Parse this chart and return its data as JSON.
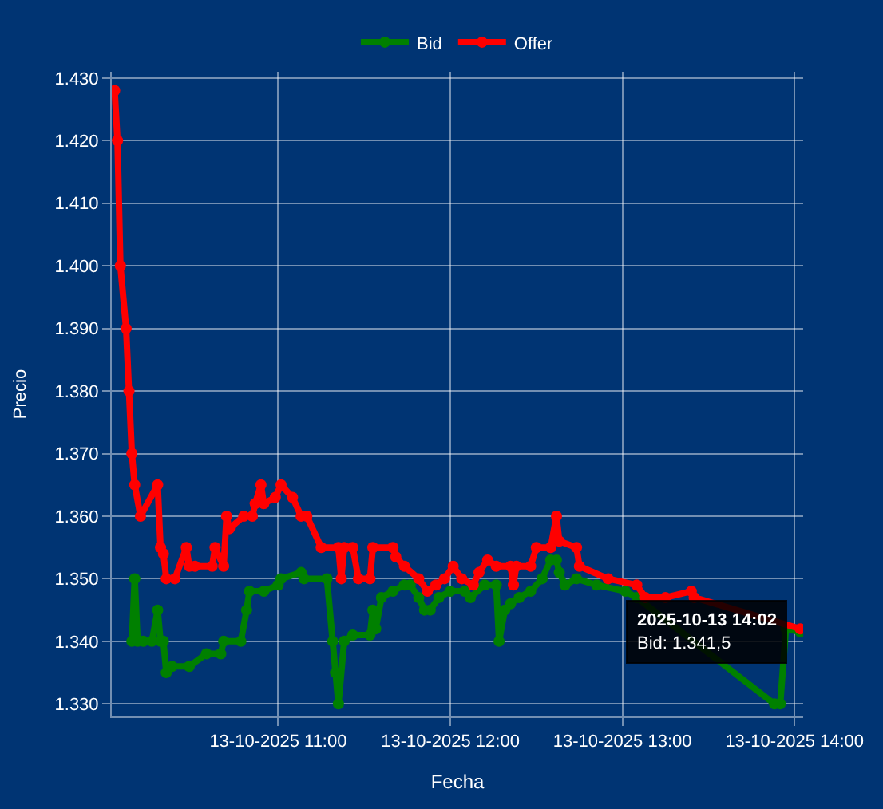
{
  "chart_data": {
    "type": "line",
    "xlabel": "Fecha",
    "ylabel": "Precio",
    "xlim": [
      "2025-10-13T10:02",
      "2025-10-13T14:03"
    ],
    "xticks": [
      {
        "value": "2025-10-13T11:00",
        "label": "13-10-2025 11:00"
      },
      {
        "value": "2025-10-13T12:00",
        "label": "13-10-2025 12:00"
      },
      {
        "value": "2025-10-13T13:00",
        "label": "13-10-2025 13:00"
      },
      {
        "value": "2025-10-13T14:00",
        "label": "13-10-2025 14:00"
      }
    ],
    "ylim": [
      1328,
      1431
    ],
    "yticks": [
      {
        "value": 1330,
        "label": "1.330"
      },
      {
        "value": 1340,
        "label": "1.340"
      },
      {
        "value": 1350,
        "label": "1.350"
      },
      {
        "value": 1360,
        "label": "1.360"
      },
      {
        "value": 1370,
        "label": "1.370"
      },
      {
        "value": 1380,
        "label": "1.380"
      },
      {
        "value": 1390,
        "label": "1.390"
      },
      {
        "value": 1400,
        "label": "1.400"
      },
      {
        "value": 1410,
        "label": "1.410"
      },
      {
        "value": 1420,
        "label": "1.420"
      },
      {
        "value": 1430,
        "label": "1.430"
      }
    ],
    "grid": true,
    "legend": "top",
    "marker": "circle",
    "series": [
      {
        "name": "Bid",
        "color": "#008000",
        "x": [
          "2025-10-13T10:09",
          "2025-10-13T10:10",
          "2025-10-13T10:11",
          "2025-10-13T10:13",
          "2025-10-13T10:16",
          "2025-10-13T10:18",
          "2025-10-13T10:19",
          "2025-10-13T10:20",
          "2025-10-13T10:21",
          "2025-10-13T10:23",
          "2025-10-13T10:29",
          "2025-10-13T10:35",
          "2025-10-13T10:40",
          "2025-10-13T10:41",
          "2025-10-13T10:47",
          "2025-10-13T10:49",
          "2025-10-13T10:50",
          "2025-10-13T10:55",
          "2025-10-13T11:00",
          "2025-10-13T11:01",
          "2025-10-13T11:08",
          "2025-10-13T11:09",
          "2025-10-13T11:17",
          "2025-10-13T11:19",
          "2025-10-13T11:20",
          "2025-10-13T11:21",
          "2025-10-13T11:23",
          "2025-10-13T11:26",
          "2025-10-13T11:32",
          "2025-10-13T11:33",
          "2025-10-13T11:34",
          "2025-10-13T11:36",
          "2025-10-13T11:40",
          "2025-10-13T11:44",
          "2025-10-13T11:46",
          "2025-10-13T11:49",
          "2025-10-13T11:51",
          "2025-10-13T11:53",
          "2025-10-13T11:56",
          "2025-10-13T12:00",
          "2025-10-13T12:05",
          "2025-10-13T12:07",
          "2025-10-13T12:12",
          "2025-10-13T12:16",
          "2025-10-13T12:17",
          "2025-10-13T12:19",
          "2025-10-13T12:21",
          "2025-10-13T12:24",
          "2025-10-13T12:28",
          "2025-10-13T12:32",
          "2025-10-13T12:35",
          "2025-10-13T12:37",
          "2025-10-13T12:38",
          "2025-10-13T12:40",
          "2025-10-13T12:44",
          "2025-10-13T12:51",
          "2025-10-13T13:01",
          "2025-10-13T13:05",
          "2025-10-13T13:53",
          "2025-10-13T13:55",
          "2025-10-13T13:57",
          "2025-10-13T14:02"
        ],
        "values": [
          1340,
          1350,
          1340,
          1340,
          1340,
          1345,
          1340,
          1340,
          1335,
          1336,
          1336,
          1338,
          1338,
          1340,
          1340,
          1345,
          1348,
          1348,
          1349,
          1350,
          1351,
          1350,
          1350,
          1340,
          1335,
          1330,
          1340,
          1341,
          1341,
          1345,
          1342,
          1347,
          1348,
          1349,
          1349,
          1347,
          1345,
          1345,
          1347,
          1348,
          1348,
          1347,
          1349,
          1349,
          1340,
          1345,
          1346,
          1347,
          1348,
          1350,
          1353,
          1353,
          1351,
          1349,
          1350,
          1349,
          1348,
          1347,
          1330,
          1330,
          1342,
          1341.5
        ]
      },
      {
        "name": "Offer",
        "color": "#ff0000",
        "x": [
          "2025-10-13T10:03",
          "2025-10-13T10:04",
          "2025-10-13T10:05",
          "2025-10-13T10:07",
          "2025-10-13T10:08",
          "2025-10-13T10:09",
          "2025-10-13T10:10",
          "2025-10-13T10:12",
          "2025-10-13T10:18",
          "2025-10-13T10:19",
          "2025-10-13T10:20",
          "2025-10-13T10:21",
          "2025-10-13T10:24",
          "2025-10-13T10:28",
          "2025-10-13T10:29",
          "2025-10-13T10:31",
          "2025-10-13T10:37",
          "2025-10-13T10:38",
          "2025-10-13T10:41",
          "2025-10-13T10:42",
          "2025-10-13T10:43",
          "2025-10-13T10:48",
          "2025-10-13T10:51",
          "2025-10-13T10:52",
          "2025-10-13T10:54",
          "2025-10-13T10:55",
          "2025-10-13T10:59",
          "2025-10-13T11:01",
          "2025-10-13T11:05",
          "2025-10-13T11:08",
          "2025-10-13T11:10",
          "2025-10-13T11:15",
          "2025-10-13T11:21",
          "2025-10-13T11:22",
          "2025-10-13T11:23",
          "2025-10-13T11:26",
          "2025-10-13T11:28",
          "2025-10-13T11:32",
          "2025-10-13T11:33",
          "2025-10-13T11:40",
          "2025-10-13T11:41",
          "2025-10-13T11:44",
          "2025-10-13T11:49",
          "2025-10-13T11:52",
          "2025-10-13T11:55",
          "2025-10-13T11:58",
          "2025-10-13T12:01",
          "2025-10-13T12:04",
          "2025-10-13T12:08",
          "2025-10-13T12:10",
          "2025-10-13T12:13",
          "2025-10-13T12:16",
          "2025-10-13T12:21",
          "2025-10-13T12:22",
          "2025-10-13T12:23",
          "2025-10-13T12:28",
          "2025-10-13T12:30",
          "2025-10-13T12:35",
          "2025-10-13T12:37",
          "2025-10-13T12:38",
          "2025-10-13T12:44",
          "2025-10-13T12:45",
          "2025-10-13T12:55",
          "2025-10-13T13:05",
          "2025-10-13T13:08",
          "2025-10-13T13:15",
          "2025-10-13T13:24",
          "2025-10-13T13:25",
          "2025-10-13T14:02"
        ],
        "values": [
          1428,
          1420,
          1400,
          1390,
          1380,
          1370,
          1365,
          1360,
          1365,
          1355,
          1354,
          1350,
          1350,
          1355,
          1352,
          1352,
          1352,
          1355,
          1352,
          1360,
          1358,
          1360,
          1360,
          1362,
          1365,
          1362,
          1363,
          1365,
          1363,
          1360,
          1360,
          1355,
          1355,
          1350,
          1355,
          1355,
          1350,
          1350,
          1355,
          1355,
          1353.5,
          1352,
          1350,
          1348,
          1349,
          1350,
          1352,
          1350,
          1349,
          1351,
          1353,
          1352,
          1352,
          1349,
          1352,
          1352,
          1355,
          1355,
          1360,
          1356,
          1355,
          1352,
          1350,
          1349,
          1347,
          1347,
          1348,
          1347,
          1342
        ]
      }
    ],
    "annotations": [
      {
        "text": "2025-10-13 14:02\nBid: 1.341,5",
        "x": "2025-10-13T14:02",
        "y": 1341.5
      }
    ]
  }
}
